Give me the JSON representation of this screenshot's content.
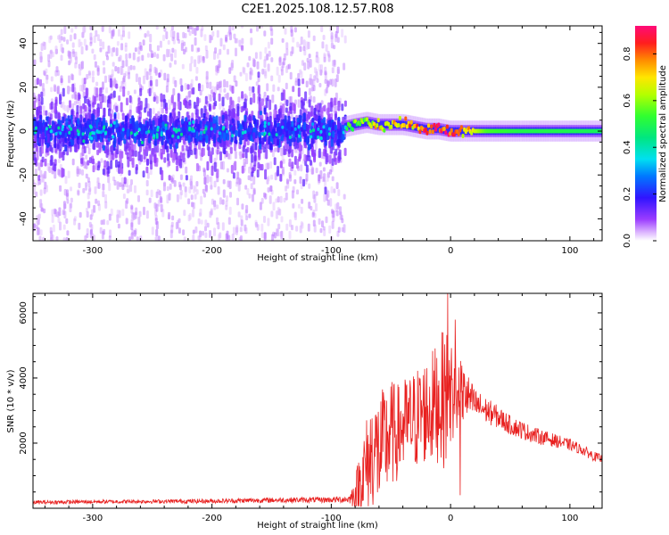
{
  "title": "C2E1.2025.108.12.57.R08",
  "colors": {
    "axis": "#000000",
    "snr_line": "#e8201f",
    "noise_violet": "#7a1cf0",
    "core_blue": "#2222ff",
    "core_green": "#22ee55"
  },
  "chart_data": [
    {
      "type": "heatmap",
      "name": "spectrogram",
      "xlabel": "Height of straight line (km)",
      "ylabel": "Frequency (Hz)",
      "xlim": [
        -350,
        127
      ],
      "ylim": [
        -50,
        48
      ],
      "xticks": [
        -300,
        -200,
        -100,
        0,
        100
      ],
      "xtick_labels": [
        "-300",
        "-200",
        "-100",
        "0",
        "100"
      ],
      "yticks": [
        -40,
        -20,
        0,
        20,
        40
      ],
      "ytick_labels": [
        "-40",
        "-20",
        "0",
        "20",
        "40"
      ],
      "noise_region_x": [
        -350,
        -88
      ],
      "signal_region_x": [
        -88,
        127
      ],
      "signal_track": {
        "x": [
          -88,
          -80,
          -70,
          -60,
          -50,
          -40,
          -30,
          -20,
          -10,
          0,
          10,
          30,
          60,
          90,
          127
        ],
        "freq": [
          2,
          3,
          4,
          3,
          3,
          3,
          2,
          1,
          1,
          0,
          0,
          0,
          0,
          0,
          0
        ],
        "amplitude": [
          0.5,
          0.55,
          0.6,
          0.62,
          0.65,
          0.7,
          0.78,
          0.85,
          0.88,
          0.8,
          0.75,
          0.55,
          0.5,
          0.5,
          0.48
        ]
      },
      "colorbar": {
        "label": "Normalized spectral amplitude",
        "range": [
          0,
          0.92
        ],
        "ticks": [
          0,
          0.2,
          0.4,
          0.6,
          0.8
        ],
        "tick_labels": [
          "0.0",
          "0.2",
          "0.4",
          "0.6",
          "0.8"
        ]
      }
    },
    {
      "type": "line",
      "name": "snr",
      "xlabel": "Height of straight line (km)",
      "ylabel": "SNR (10 * v/v)",
      "xlim": [
        -350,
        127
      ],
      "ylim": [
        0,
        6600
      ],
      "xticks": [
        -300,
        -200,
        -100,
        0,
        100
      ],
      "xtick_labels": [
        "-300",
        "-200",
        "-100",
        "0",
        "100"
      ],
      "yticks": [
        2000,
        4000,
        6000
      ],
      "ytick_labels": [
        "2000",
        "4000",
        "6000"
      ],
      "series": [
        {
          "name": "SNR",
          "x": [
            -350,
            -300,
            -250,
            -200,
            -150,
            -100,
            -85,
            -80,
            -75,
            -70,
            -65,
            -60,
            -55,
            -50,
            -45,
            -40,
            -35,
            -30,
            -25,
            -20,
            -15,
            -10,
            -5,
            0,
            5,
            10,
            15,
            20,
            30,
            40,
            50,
            60,
            70,
            80,
            90,
            100,
            110,
            120,
            127
          ],
          "y": [
            180,
            200,
            210,
            220,
            250,
            260,
            280,
            450,
            900,
            1300,
            1800,
            1700,
            2000,
            2300,
            2300,
            2500,
            2600,
            2700,
            2900,
            3000,
            3100,
            3300,
            3400,
            3500,
            3600,
            3500,
            3400,
            3200,
            3000,
            2800,
            2550,
            2400,
            2250,
            2150,
            2050,
            1950,
            1800,
            1600,
            1500
          ],
          "spread": [
            60,
            60,
            60,
            70,
            80,
            90,
            120,
            500,
            1200,
            1600,
            1800,
            1800,
            1800,
            1700,
            1500,
            1500,
            1500,
            1600,
            1600,
            1700,
            1800,
            1900,
            2200,
            2000,
            1200,
            900,
            700,
            500,
            400,
            350,
            300,
            280,
            250,
            220,
            200,
            180,
            160,
            150,
            140
          ]
        }
      ]
    }
  ]
}
